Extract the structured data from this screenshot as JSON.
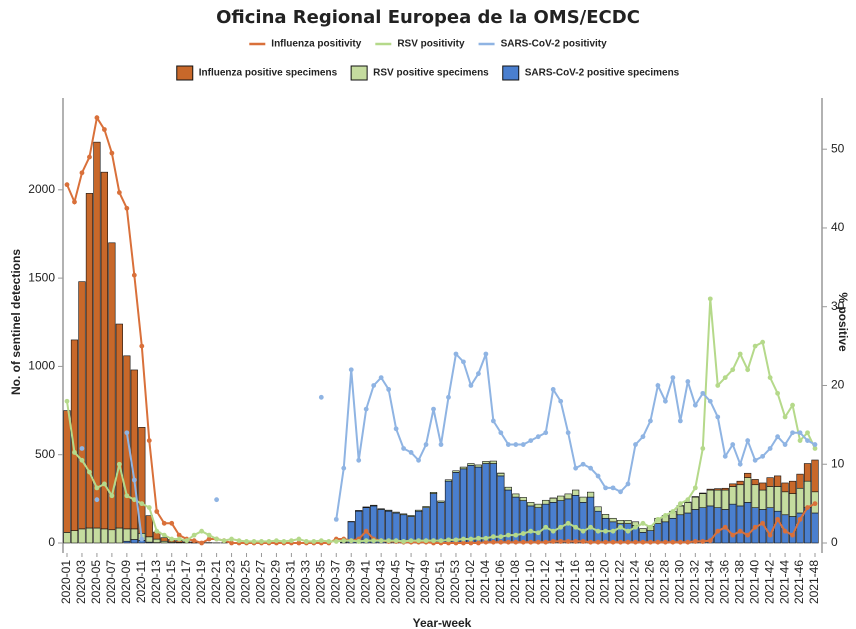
{
  "chart_data": {
    "type": "bar",
    "stacked": true,
    "title": "Oficina Regional Europea de la OMS/ECDC",
    "x_label": "Year-week",
    "y_label": "No. of sentinel detections",
    "y2_label": "% positive",
    "categories": [
      "2020-01",
      null,
      "2020-03",
      null,
      "2020-05",
      null,
      "2020-07",
      null,
      "2020-09",
      null,
      "2020-11",
      null,
      "2020-13",
      null,
      "2020-15",
      null,
      "2020-17",
      null,
      "2020-19",
      null,
      "2020-21",
      null,
      "2020-23",
      null,
      "2020-25",
      null,
      "2020-27",
      null,
      "2020-29",
      null,
      "2020-31",
      null,
      "2020-33",
      null,
      "2020-35",
      null,
      "2020-37",
      null,
      "2020-39",
      null,
      "2020-41",
      null,
      "2020-43",
      null,
      "2020-45",
      null,
      "2020-47",
      null,
      "2020-49",
      null,
      "2020-51",
      null,
      "2020-53",
      null,
      "2021-02",
      null,
      "2021-04",
      null,
      "2021-06",
      null,
      "2021-08",
      null,
      "2021-10",
      null,
      "2021-12",
      null,
      "2021-14",
      null,
      "2021-16",
      null,
      "2021-18",
      null,
      "2021-20",
      null,
      "2021-22",
      null,
      "2021-24",
      null,
      "2021-26",
      null,
      "2021-28",
      null,
      "2021-30",
      null,
      "2021-32",
      null,
      "2021-34",
      null,
      "2021-36",
      null,
      "2021-38",
      null,
      "2021-40",
      null,
      "2021-42",
      null,
      "2021-44",
      null,
      "2021-46",
      null,
      "2021-48"
    ],
    "ylim": [
      0,
      2520
    ],
    "yticks": [
      0,
      500,
      1000,
      1500,
      2000
    ],
    "y2lim": [
      0,
      56.5
    ],
    "y2ticks": [
      0,
      10,
      20,
      30,
      40,
      50
    ],
    "series": [
      {
        "name": "Influenza positivity",
        "type": "line",
        "axis": "y2",
        "color": "#d9703a",
        "values": [
          45.5,
          43.3,
          47,
          49,
          54,
          52.5,
          49.5,
          44.5,
          42.5,
          34,
          25,
          13,
          4,
          2.5,
          2.5,
          1,
          0.5,
          0.3,
          0,
          0.5,
          0.5,
          0.3,
          0,
          0,
          0,
          0,
          0,
          0,
          0,
          0,
          0,
          0,
          0,
          0,
          0,
          0,
          0.5,
          0.5,
          0.3,
          0.5,
          1.5,
          0.5,
          0.3,
          0.2,
          0.2,
          0.1,
          0.1,
          0.1,
          0.1,
          0,
          0,
          0,
          0,
          0,
          0,
          0,
          0.1,
          0.1,
          0.1,
          0.1,
          0.1,
          0.1,
          0.1,
          0.1,
          0.1,
          0.2,
          0.2,
          0.2,
          0.2,
          0.2,
          0.1,
          0.1,
          0.1,
          0.1,
          0.1,
          0.1,
          0.1,
          0.1,
          0.1,
          0.1,
          0.1,
          0.1,
          0.1,
          0.1,
          0.2,
          0.2,
          0.3,
          1.5,
          2,
          1,
          1.5,
          1,
          2,
          2.5,
          1,
          3,
          1.5,
          1,
          3,
          4.5,
          5
        ]
      },
      {
        "name": "RSV positivity",
        "type": "line",
        "axis": "y2",
        "color": "#b5d98a",
        "values": [
          18,
          11.5,
          10.5,
          9,
          7,
          7.5,
          6,
          10,
          6,
          5.5,
          5,
          4.5,
          1.5,
          1,
          0.5,
          0.5,
          0.3,
          1,
          1.5,
          1,
          0.5,
          0.3,
          0.5,
          0.3,
          0.2,
          0.2,
          0.2,
          0.2,
          0.3,
          0.2,
          0.3,
          0.5,
          0.2,
          0.2,
          0.3,
          0.2,
          0.2,
          0.3,
          0.3,
          0.2,
          0.3,
          0.3,
          0.3,
          0.3,
          0.3,
          0.2,
          0.3,
          0.3,
          0.3,
          0.3,
          0.3,
          0.4,
          0.4,
          0.5,
          0.5,
          0.6,
          0.6,
          0.8,
          0.8,
          1,
          1,
          1.2,
          1.5,
          1.3,
          2,
          1.5,
          2,
          2.5,
          2,
          1.5,
          2,
          1.5,
          1.5,
          1.5,
          2,
          1.5,
          2,
          2.5,
          2,
          3,
          3.5,
          4,
          5,
          5.5,
          7,
          12,
          31,
          20,
          21,
          22,
          24,
          22,
          25,
          25.5,
          21,
          19,
          16,
          17.5,
          13,
          14,
          12
        ]
      },
      {
        "name": "SARS-CoV-2 positivity",
        "type": "line",
        "axis": "y2",
        "color": "#8fb4e3",
        "values": [
          null,
          null,
          12,
          null,
          5.5,
          null,
          null,
          null,
          14,
          8,
          0.5,
          null,
          null,
          null,
          null,
          null,
          null,
          null,
          null,
          null,
          5.5,
          null,
          null,
          null,
          null,
          null,
          null,
          null,
          null,
          null,
          null,
          null,
          null,
          null,
          18.5,
          null,
          3,
          9.5,
          22,
          10.5,
          17,
          20,
          21,
          19.5,
          14.5,
          12,
          11.5,
          10.5,
          12.5,
          17,
          12.5,
          18.5,
          24,
          23,
          20,
          21.5,
          24,
          15.5,
          14,
          12.5,
          12.5,
          12.5,
          13,
          13.5,
          14,
          19.5,
          18,
          14,
          9.5,
          10,
          9.5,
          8.5,
          7,
          7,
          6.5,
          7.5,
          12.5,
          13.5,
          15.5,
          20,
          18,
          21,
          15.5,
          20.5,
          17.5,
          19,
          18,
          16,
          11,
          12.5,
          10,
          13,
          10.5,
          11,
          12,
          13.5,
          12.5,
          14,
          14,
          13,
          12.5
        ]
      },
      {
        "name": "Influenza positive specimens",
        "type": "bar",
        "color": "#c8682a",
        "values": [
          690,
          1080,
          1400,
          1895,
          2185,
          2020,
          1625,
          1155,
          980,
          900,
          600,
          120,
          40,
          20,
          15,
          10,
          5,
          5,
          3,
          2,
          1,
          1,
          0,
          0,
          0,
          0,
          0,
          0,
          0,
          0,
          0,
          0,
          0,
          0,
          0,
          0,
          0,
          0,
          0,
          1,
          1,
          0,
          0,
          1,
          0,
          0,
          0,
          0,
          0,
          0,
          0,
          0,
          0,
          0,
          0,
          0,
          0,
          0,
          1,
          0,
          0,
          0,
          0,
          0,
          0,
          1,
          0,
          0,
          0,
          0,
          0,
          0,
          0,
          0,
          0,
          0,
          0,
          0,
          0,
          0,
          0,
          0,
          2,
          2,
          3,
          3,
          5,
          8,
          10,
          15,
          20,
          25,
          30,
          40,
          50,
          60,
          50,
          70,
          80,
          100,
          180
        ]
      },
      {
        "name": "RSV positive specimens",
        "type": "bar",
        "color": "#c5dc9f",
        "values": [
          60,
          70,
          80,
          85,
          85,
          80,
          75,
          85,
          70,
          60,
          40,
          30,
          20,
          10,
          5,
          3,
          2,
          1,
          1,
          0,
          0,
          0,
          0,
          0,
          0,
          0,
          0,
          0,
          0,
          0,
          0,
          0,
          0,
          0,
          0,
          0,
          0,
          1,
          2,
          3,
          3,
          4,
          4,
          5,
          5,
          5,
          6,
          6,
          7,
          7,
          8,
          8,
          9,
          10,
          10,
          12,
          12,
          14,
          15,
          16,
          18,
          18,
          20,
          20,
          22,
          24,
          26,
          28,
          30,
          30,
          28,
          25,
          22,
          20,
          18,
          18,
          20,
          22,
          25,
          30,
          35,
          40,
          50,
          60,
          70,
          80,
          90,
          100,
          110,
          100,
          120,
          140,
          130,
          110,
          120,
          140,
          130,
          130,
          140,
          150,
          120
        ]
      },
      {
        "name": "SARS-CoV-2 positive specimens",
        "type": "bar",
        "color": "#4a7fcf",
        "values": [
          0,
          0,
          0,
          0,
          0,
          0,
          0,
          0,
          10,
          20,
          15,
          5,
          2,
          0,
          0,
          0,
          0,
          0,
          0,
          0,
          0,
          0,
          0,
          0,
          0,
          0,
          0,
          0,
          0,
          0,
          0,
          0,
          0,
          0,
          0,
          0,
          0,
          5,
          120,
          180,
          200,
          210,
          190,
          180,
          170,
          160,
          150,
          180,
          200,
          280,
          230,
          350,
          400,
          420,
          440,
          430,
          450,
          450,
          380,
          300,
          260,
          240,
          210,
          200,
          220,
          230,
          240,
          250,
          270,
          230,
          260,
          180,
          140,
          120,
          110,
          110,
          100,
          60,
          70,
          110,
          120,
          140,
          160,
          170,
          190,
          200,
          210,
          200,
          190,
          220,
          210,
          230,
          200,
          190,
          200,
          180,
          160,
          150,
          170,
          200,
          170
        ]
      }
    ]
  }
}
